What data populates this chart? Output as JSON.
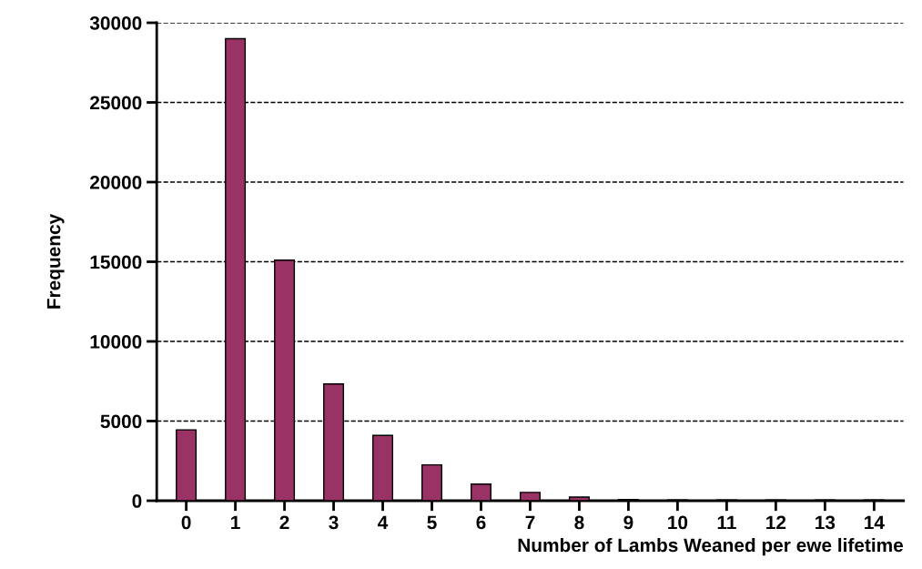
{
  "chart_data": {
    "type": "bar",
    "xlabel": "Number of Lambs Weaned per ewe lifetime",
    "ylabel": "Frequency",
    "categories": [
      "0",
      "1",
      "2",
      "3",
      "4",
      "5",
      "6",
      "7",
      "8",
      "9",
      "10",
      "11",
      "12",
      "13",
      "14"
    ],
    "values": [
      4450,
      29000,
      15100,
      7330,
      4100,
      2250,
      1040,
      520,
      230,
      80,
      50,
      50,
      50,
      50,
      50
    ],
    "color": "#993366",
    "ylim": [
      0,
      30000
    ],
    "yticks": [
      0,
      5000,
      10000,
      15000,
      20000,
      25000,
      30000
    ],
    "grid": "y"
  }
}
